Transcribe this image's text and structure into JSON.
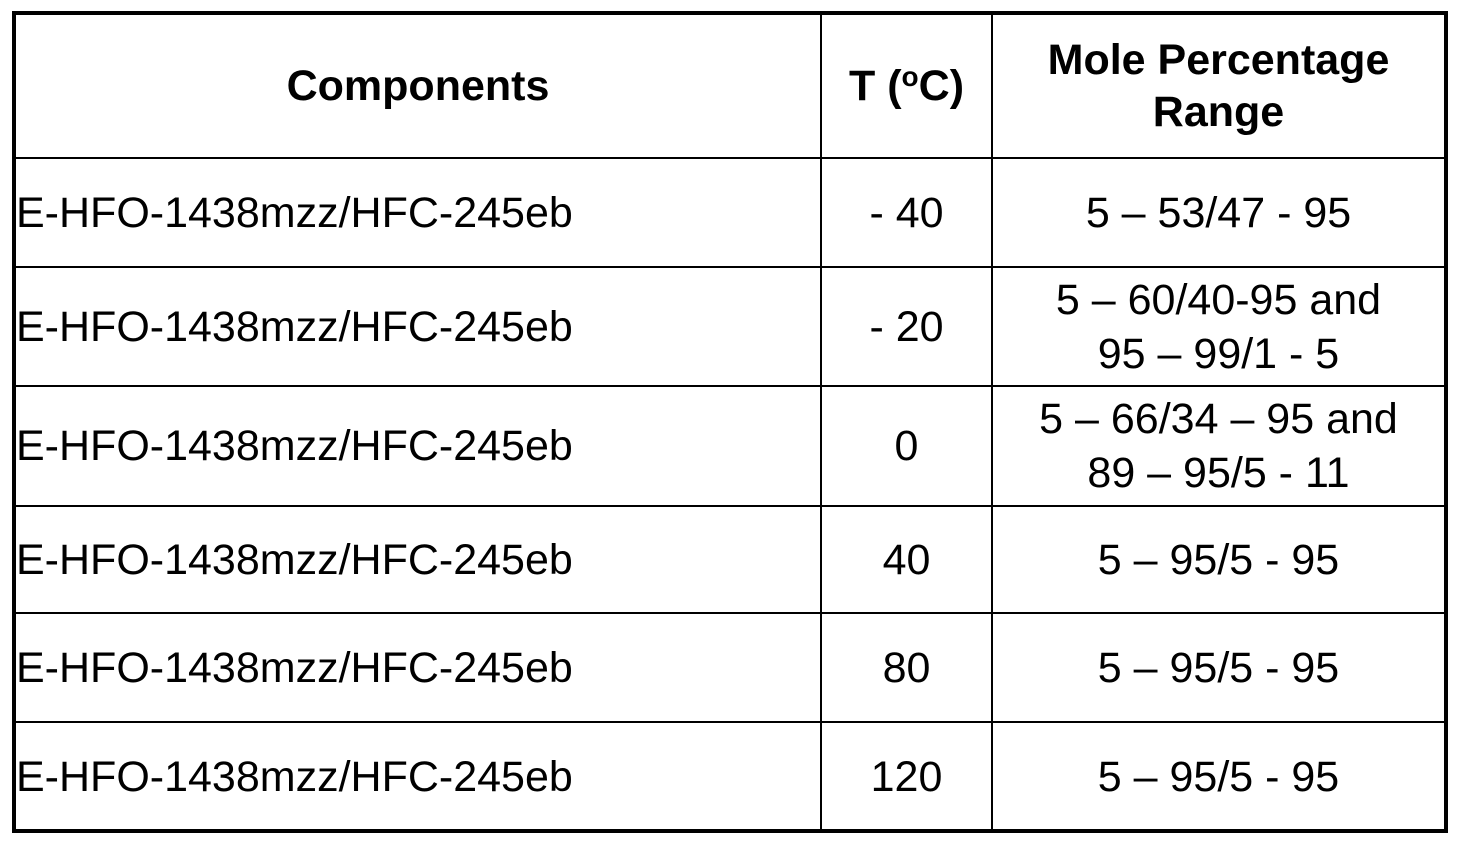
{
  "table": {
    "headers": {
      "components": "Components",
      "temperature_prefix": "T (",
      "temperature_sup": "o",
      "temperature_suffix": "C)",
      "mole_percentage": "Mole Percentage Range"
    },
    "rows": [
      {
        "component": "E-HFO-1438mzz/HFC-245eb",
        "temperature": "- 40",
        "range": "5 – 53/47 - 95"
      },
      {
        "component": "E-HFO-1438mzz/HFC-245eb",
        "temperature": "- 20",
        "range": "5 – 60/40-95 and\n95 – 99/1 - 5"
      },
      {
        "component": "E-HFO-1438mzz/HFC-245eb",
        "temperature": "0",
        "range": "5 – 66/34 – 95 and\n89 – 95/5 - 11"
      },
      {
        "component": "E-HFO-1438mzz/HFC-245eb",
        "temperature": "40",
        "range": "5 – 95/5 - 95"
      },
      {
        "component": "E-HFO-1438mzz/HFC-245eb",
        "temperature": "80",
        "range": "5 – 95/5 - 95"
      },
      {
        "component": "E-HFO-1438mzz/HFC-245eb",
        "temperature": "120",
        "range": "5 – 95/5 - 95"
      }
    ]
  }
}
